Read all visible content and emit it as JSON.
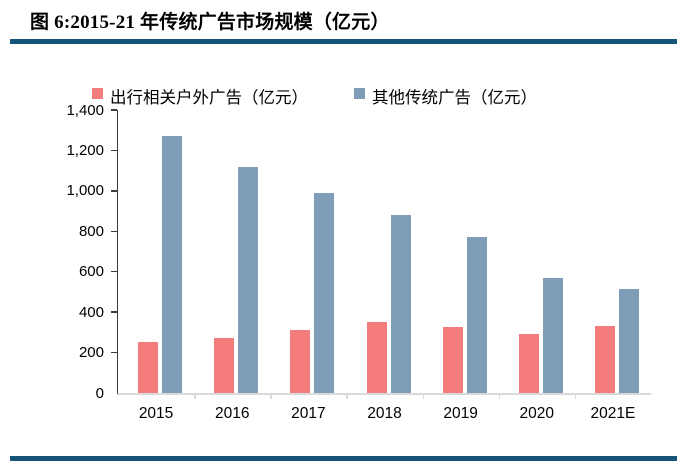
{
  "figure": {
    "title": "图 6:2015-21 年传统广告市场规模（亿元）",
    "rule_color": "#16547A",
    "axis_color": "#3c3c3c",
    "baseline_color": "#d9d9d9"
  },
  "chart_data": {
    "type": "bar",
    "title": "图 6:2015-21 年传统广告市场规模（亿元）",
    "categories": [
      "2015",
      "2016",
      "2017",
      "2018",
      "2019",
      "2020",
      "2021E"
    ],
    "series": [
      {
        "name": "出行相关户外广告（亿元）",
        "color": "#F47C7C",
        "values": [
          250,
          270,
          310,
          350,
          325,
          290,
          330
        ]
      },
      {
        "name": "其他传统广告（亿元）",
        "color": "#7F9DB8",
        "values": [
          1270,
          1120,
          990,
          880,
          770,
          570,
          515
        ]
      }
    ],
    "xlabel": "",
    "ylabel": "",
    "ylim": [
      0,
      1400
    ],
    "ytick_interval": 200,
    "ytick_labels": [
      "0",
      "200",
      "400",
      "600",
      "800",
      "1,000",
      "1,200",
      "1,400"
    ],
    "grid": false,
    "legend_position": "top"
  }
}
